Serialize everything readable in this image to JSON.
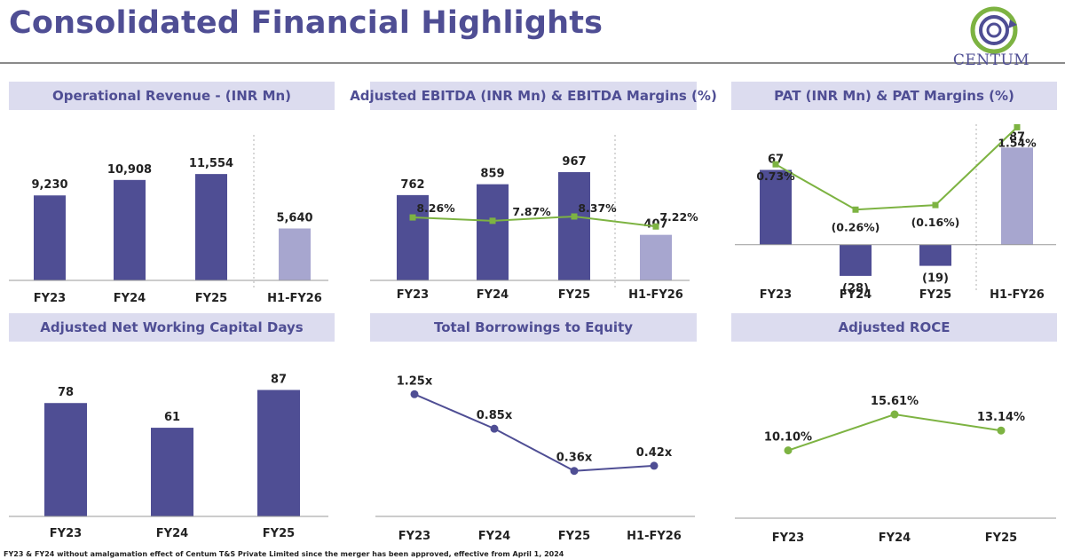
{
  "title": "Consolidated Financial Highlights",
  "logo": {
    "name": "CENTUM"
  },
  "footnote": "FY23 & FY24 without amalgamation effect of Centum T&S Private Limited since the merger has been approved, effective from April 1, 2024",
  "colors": {
    "bar": "#4f4e94",
    "bar_light": "#a7a6cf",
    "line_green": "#7db342",
    "line_purple": "#4f4e94",
    "panel_bg": "#dcdcef",
    "axis": "#999999"
  },
  "panels": {
    "revenue": {
      "title": "Operational Revenue - (INR Mn)"
    },
    "ebitda": {
      "title": "Adjusted EBITDA (INR Mn) & EBITDA Margins (%)"
    },
    "pat": {
      "title": "PAT (INR Mn) & PAT Margins (%)"
    },
    "nwc": {
      "title": "Adjusted Net Working Capital Days"
    },
    "borrowings": {
      "title": "Total Borrowings to Equity"
    },
    "roce": {
      "title": "Adjusted ROCE"
    }
  },
  "chart_data": [
    {
      "id": "revenue",
      "type": "bar",
      "title": "Operational Revenue - (INR Mn)",
      "categories": [
        "FY23",
        "FY24",
        "FY25",
        "H1-FY26"
      ],
      "values": [
        9230,
        10908,
        11554,
        5640
      ],
      "labels": [
        "9,230",
        "10,908",
        "11,554",
        "5,640"
      ],
      "highlight_last": true,
      "ylim": [
        0,
        16000
      ]
    },
    {
      "id": "ebitda",
      "type": "bar",
      "title": "Adjusted EBITDA (INR Mn) & EBITDA Margins (%)",
      "categories": [
        "FY23",
        "FY24",
        "FY25",
        "H1-FY26"
      ],
      "values": [
        762,
        859,
        967,
        407
      ],
      "labels": [
        "762",
        "859",
        "967",
        "407"
      ],
      "highlight_last": true,
      "ylim": [
        0,
        1300
      ],
      "line": {
        "name": "EBITDA Margin",
        "values": [
          8.26,
          7.87,
          8.37,
          7.22
        ],
        "labels": [
          "8.26%",
          "7.87%",
          "8.37%",
          "7.22%"
        ],
        "ylim": [
          0,
          20
        ]
      }
    },
    {
      "id": "pat",
      "type": "bar",
      "title": "PAT (INR Mn) & PAT Margins (%)",
      "categories": [
        "FY23",
        "FY24",
        "FY25",
        "H1-FY26"
      ],
      "values": [
        67,
        -28,
        -19,
        87
      ],
      "labels": [
        "67",
        "(28)",
        "(19)",
        "87"
      ],
      "highlight_last": true,
      "ylim": [
        -40,
        100
      ],
      "line": {
        "name": "PAT Margin",
        "values": [
          0.73,
          -0.26,
          -0.16,
          1.54
        ],
        "labels": [
          "0.73%",
          "(0.26%)",
          "(0.16%)",
          "1.54%"
        ],
        "ylim": [
          -2,
          1.8
        ]
      }
    },
    {
      "id": "nwc",
      "type": "bar",
      "title": "Adjusted Net Working Capital Days",
      "categories": [
        "FY23",
        "FY24",
        "FY25"
      ],
      "values": [
        78,
        61,
        87
      ],
      "labels": [
        "78",
        "61",
        "87"
      ],
      "highlight_last": false,
      "ylim": [
        0,
        105
      ]
    },
    {
      "id": "borrowings",
      "type": "line",
      "title": "Total Borrowings to Equity",
      "categories": [
        "FY23",
        "FY24",
        "FY25",
        "H1-FY26"
      ],
      "values": [
        1.25,
        0.85,
        0.36,
        0.42
      ],
      "labels": [
        "1.25x",
        "0.85x",
        "0.36x",
        "0.42x"
      ],
      "ylim": [
        0.1,
        1.5
      ]
    },
    {
      "id": "roce",
      "type": "line",
      "title": "Adjusted ROCE",
      "categories": [
        "FY23",
        "FY24",
        "FY25"
      ],
      "values": [
        10.1,
        15.61,
        13.14
      ],
      "labels": [
        "10.10%",
        "15.61%",
        "13.14%"
      ],
      "ylim": [
        0,
        22
      ]
    }
  ]
}
